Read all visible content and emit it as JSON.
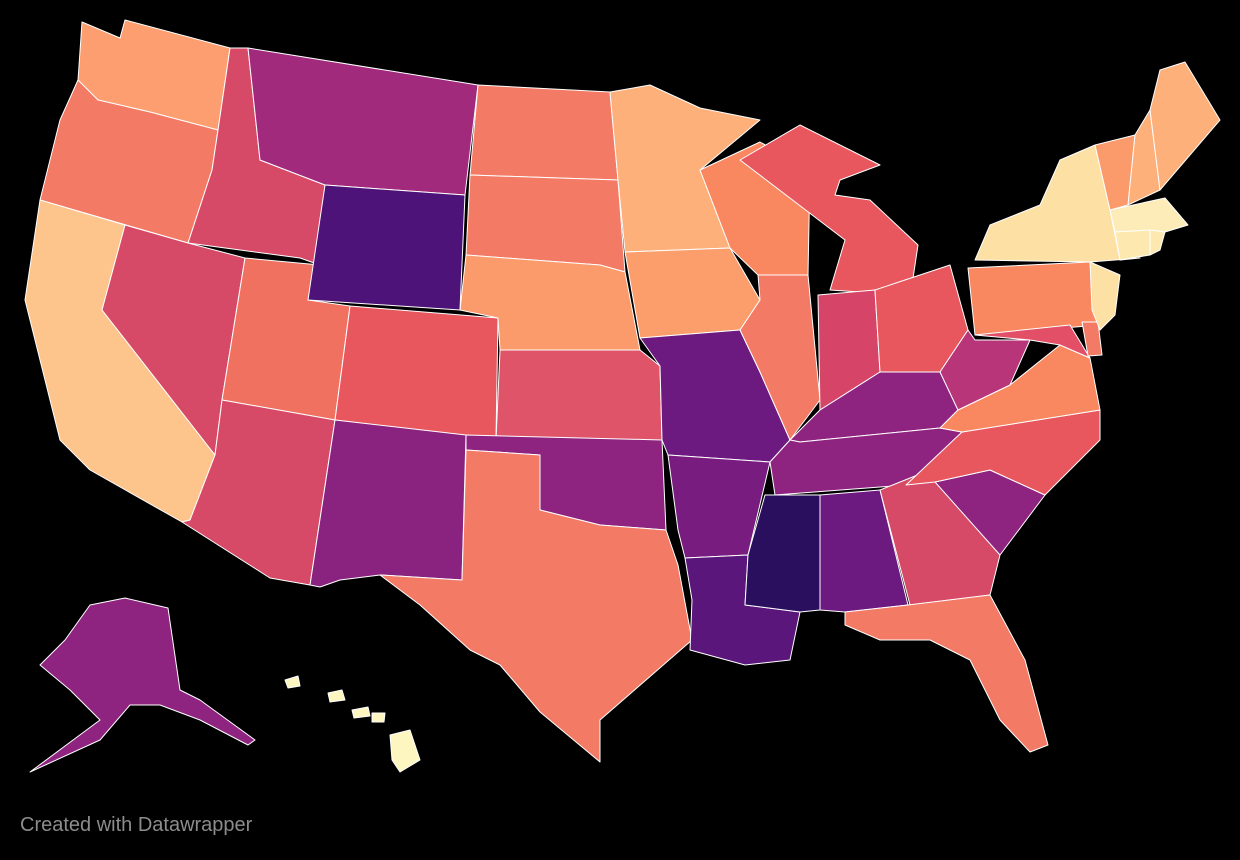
{
  "map": {
    "type": "us-states-choropleth",
    "color_scale": "magma",
    "background": "#000000",
    "states": [
      {
        "id": "WA",
        "color": "#fc9e6f"
      },
      {
        "id": "OR",
        "color": "#f37a64"
      },
      {
        "id": "CA",
        "color": "#fdc48c"
      },
      {
        "id": "ID",
        "color": "#d74a67"
      },
      {
        "id": "NV",
        "color": "#d74a67"
      },
      {
        "id": "UT",
        "color": "#f07160"
      },
      {
        "id": "AZ",
        "color": "#d74a67"
      },
      {
        "id": "MT",
        "color": "#a12a7d"
      },
      {
        "id": "WY",
        "color": "#4d1379"
      },
      {
        "id": "CO",
        "color": "#e9575e"
      },
      {
        "id": "NM",
        "color": "#8a2380"
      },
      {
        "id": "ND",
        "color": "#f37a64"
      },
      {
        "id": "SD",
        "color": "#f37a64"
      },
      {
        "id": "NE",
        "color": "#fb9a6a"
      },
      {
        "id": "KS",
        "color": "#e0546a"
      },
      {
        "id": "OK",
        "color": "#8e2480"
      },
      {
        "id": "TX",
        "color": "#f37a64"
      },
      {
        "id": "MN",
        "color": "#fdb07a"
      },
      {
        "id": "IA",
        "color": "#fc9e6b"
      },
      {
        "id": "MO",
        "color": "#6c1a80"
      },
      {
        "id": "AR",
        "color": "#781c80"
      },
      {
        "id": "LA",
        "color": "#5b167c"
      },
      {
        "id": "WI",
        "color": "#f98760"
      },
      {
        "id": "IL",
        "color": "#f37a64"
      },
      {
        "id": "MI",
        "color": "#e9575e"
      },
      {
        "id": "IN",
        "color": "#d64568"
      },
      {
        "id": "OH",
        "color": "#e9575e"
      },
      {
        "id": "KY",
        "color": "#8e2480"
      },
      {
        "id": "TN",
        "color": "#8e2480"
      },
      {
        "id": "MS",
        "color": "#2a0f5e"
      },
      {
        "id": "AL",
        "color": "#6c1a80"
      },
      {
        "id": "GA",
        "color": "#d74a67"
      },
      {
        "id": "FL",
        "color": "#f37a64"
      },
      {
        "id": "SC",
        "color": "#8e2480"
      },
      {
        "id": "NC",
        "color": "#e9575e"
      },
      {
        "id": "VA",
        "color": "#f98760"
      },
      {
        "id": "WV",
        "color": "#b8357a"
      },
      {
        "id": "PA",
        "color": "#f98760"
      },
      {
        "id": "MD",
        "color": "#e24f66"
      },
      {
        "id": "DE",
        "color": "#f37a64"
      },
      {
        "id": "NJ",
        "color": "#fde0a4"
      },
      {
        "id": "NY",
        "color": "#fde0a4"
      },
      {
        "id": "VT",
        "color": "#fb9a6a"
      },
      {
        "id": "NH",
        "color": "#fdb07a"
      },
      {
        "id": "ME",
        "color": "#fdb07a"
      },
      {
        "id": "MA",
        "color": "#fdecb8"
      },
      {
        "id": "CT",
        "color": "#fde8b0"
      },
      {
        "id": "RI",
        "color": "#fde8b0"
      },
      {
        "id": "AK",
        "color": "#8e2480"
      },
      {
        "id": "HI",
        "color": "#fdf6c0"
      }
    ]
  },
  "footer": {
    "credit": "Created with Datawrapper"
  }
}
